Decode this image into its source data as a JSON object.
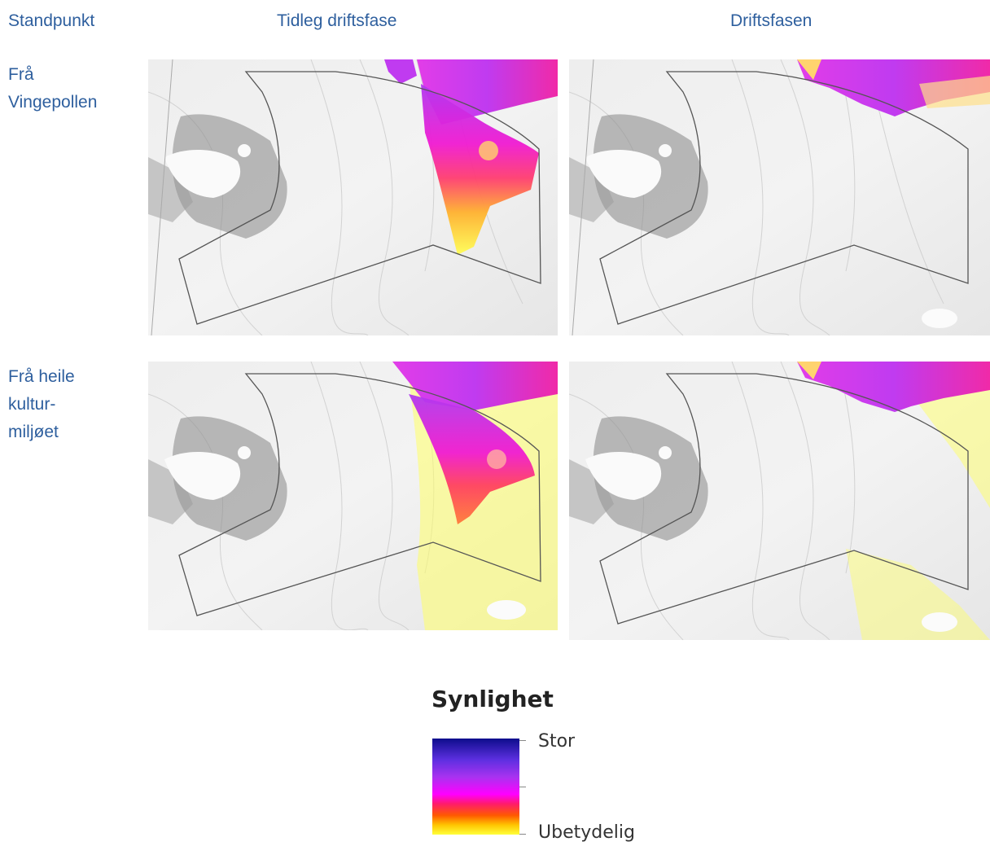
{
  "headers": {
    "standpoint": "Standpunkt",
    "early": "Tidleg driftsfase",
    "operation": "Driftsfasen"
  },
  "rows": [
    {
      "lines": [
        "Frå",
        "Vingepollen"
      ]
    },
    {
      "lines": [
        "Frå heile",
        "kultur-",
        "miljøet"
      ]
    }
  ],
  "legend": {
    "title": "Synlighet",
    "high": "Stor",
    "low": "Ubetydelig"
  },
  "colors": {
    "label_text": "#2e5f9e",
    "visibility_high": "#8b2cf0",
    "visibility_mid": "#ff1bbd",
    "visibility_low": "#ffff3a"
  }
}
